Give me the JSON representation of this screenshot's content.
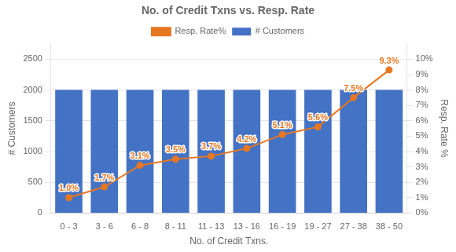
{
  "chart_data": {
    "type": "bar",
    "title": "No. of Credit Txns vs. Resp. Rate",
    "categories": [
      "0 - 3",
      "3 - 6",
      "6 - 8",
      "8 - 11",
      "11 - 13",
      "13 - 16",
      "16 - 19",
      "19 - 27",
      "27 - 38",
      "38 - 50"
    ],
    "series": [
      {
        "name": "# Customers",
        "type": "bar",
        "color": "#4472C4",
        "values": [
          2000,
          2000,
          2000,
          2000,
          2000,
          2000,
          2000,
          2000,
          2000,
          2000
        ]
      },
      {
        "name": "Resp. Rate%",
        "type": "line",
        "color": "#E87722",
        "marker": "circle",
        "axis": "y2",
        "data_labels": true,
        "values": [
          1.0,
          1.7,
          3.1,
          3.5,
          3.7,
          4.2,
          5.1,
          5.6,
          7.5,
          9.3
        ],
        "value_labels": [
          "1.0%",
          "1.7%",
          "3.1%",
          "3.5%",
          "3.7%",
          "4.2%",
          "5.1%",
          "5.6%",
          "7.5%",
          "9.3%"
        ]
      }
    ],
    "xlabel": "No. of Credit Txns.",
    "ylabel": "# Customers",
    "y2label": "Resp. Rate %",
    "ylim": [
      0,
      2750
    ],
    "yticks": [
      0,
      500,
      1000,
      1500,
      2000,
      2500
    ],
    "y2lim": [
      0,
      11
    ],
    "y2ticks": [
      {
        "value": 0,
        "label": "0%"
      },
      {
        "value": 1,
        "label": "1%"
      },
      {
        "value": 2,
        "label": "2%"
      },
      {
        "value": 3,
        "label": "3%"
      },
      {
        "value": 4,
        "label": "4%"
      },
      {
        "value": 5,
        "label": "5%"
      },
      {
        "value": 6,
        "label": "6%"
      },
      {
        "value": 7,
        "label": "7%"
      },
      {
        "value": 8,
        "label": "8%"
      },
      {
        "value": 9,
        "label": "9%"
      },
      {
        "value": 10,
        "label": "10%"
      }
    ],
    "grid": true,
    "legend": "top"
  }
}
